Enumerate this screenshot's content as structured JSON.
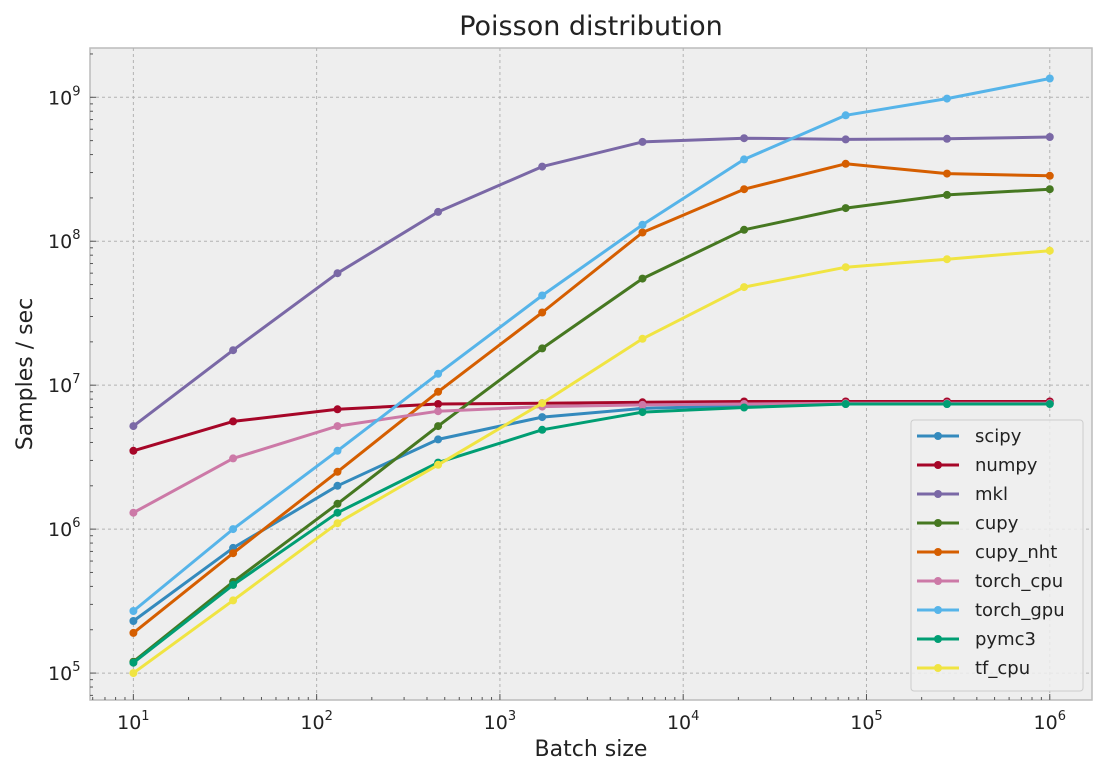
{
  "chart_data": {
    "type": "line",
    "title": "Poisson distribution",
    "xlabel": "Batch size",
    "ylabel": "Samples / sec",
    "xscale": "log",
    "yscale": "log",
    "xlim": [
      5.8,
      1700000
    ],
    "ylim": [
      65000,
      2200000000
    ],
    "grid": true,
    "legend_position": "lower right",
    "x_ticks": [
      {
        "base": "10",
        "exp": "1"
      },
      {
        "base": "10",
        "exp": "2"
      },
      {
        "base": "10",
        "exp": "3"
      },
      {
        "base": "10",
        "exp": "4"
      },
      {
        "base": "10",
        "exp": "5"
      },
      {
        "base": "10",
        "exp": "6"
      }
    ],
    "y_ticks": [
      {
        "base": "10",
        "exp": "5"
      },
      {
        "base": "10",
        "exp": "6"
      },
      {
        "base": "10",
        "exp": "7"
      },
      {
        "base": "10",
        "exp": "8"
      },
      {
        "base": "10",
        "exp": "9"
      }
    ],
    "x": [
      10,
      35,
      130,
      460,
      1700,
      6000,
      21500,
      77000,
      275000,
      1000000
    ],
    "series": [
      {
        "name": "scipy",
        "color": "#348ABD",
        "values": [
          230000,
          740000,
          2000000,
          4200000,
          6000000,
          6900000,
          7200000,
          7400000,
          7400000,
          7500000
        ]
      },
      {
        "name": "numpy",
        "color": "#A60628",
        "values": [
          3500000,
          5600000,
          6800000,
          7400000,
          7500000,
          7600000,
          7700000,
          7700000,
          7700000,
          7700000
        ]
      },
      {
        "name": "mkl",
        "color": "#7A68A6",
        "values": [
          5200000,
          17500000,
          60000000,
          160000000,
          330000000,
          490000000,
          520000000,
          510000000,
          515000000,
          530000000
        ]
      },
      {
        "name": "cupy",
        "color": "#467821",
        "values": [
          120000,
          430000,
          1500000,
          5200000,
          18000000,
          55000000,
          120000000,
          170000000,
          210000000,
          230000000
        ]
      },
      {
        "name": "cupy_nht",
        "color": "#D55E00",
        "values": [
          190000,
          680000,
          2500000,
          9000000,
          32000000,
          115000000,
          230000000,
          345000000,
          295000000,
          285000000
        ]
      },
      {
        "name": "torch_cpu",
        "color": "#CC79A7",
        "values": [
          1300000,
          3100000,
          5200000,
          6600000,
          7100000,
          7300000,
          7400000,
          7500000,
          7500000,
          7500000
        ]
      },
      {
        "name": "torch_gpu",
        "color": "#56B4E9",
        "values": [
          270000,
          1000000,
          3500000,
          12000000,
          42000000,
          130000000,
          370000000,
          750000000,
          980000000,
          1350000000
        ]
      },
      {
        "name": "pymc3",
        "color": "#009E73",
        "values": [
          118000,
          410000,
          1300000,
          2900000,
          4900000,
          6500000,
          7000000,
          7400000,
          7400000,
          7400000
        ]
      },
      {
        "name": "tf_cpu",
        "color": "#F0E442",
        "values": [
          100000,
          320000,
          1100000,
          2800000,
          7500000,
          21000000,
          48000000,
          66000000,
          75000000,
          86000000
        ]
      }
    ]
  }
}
